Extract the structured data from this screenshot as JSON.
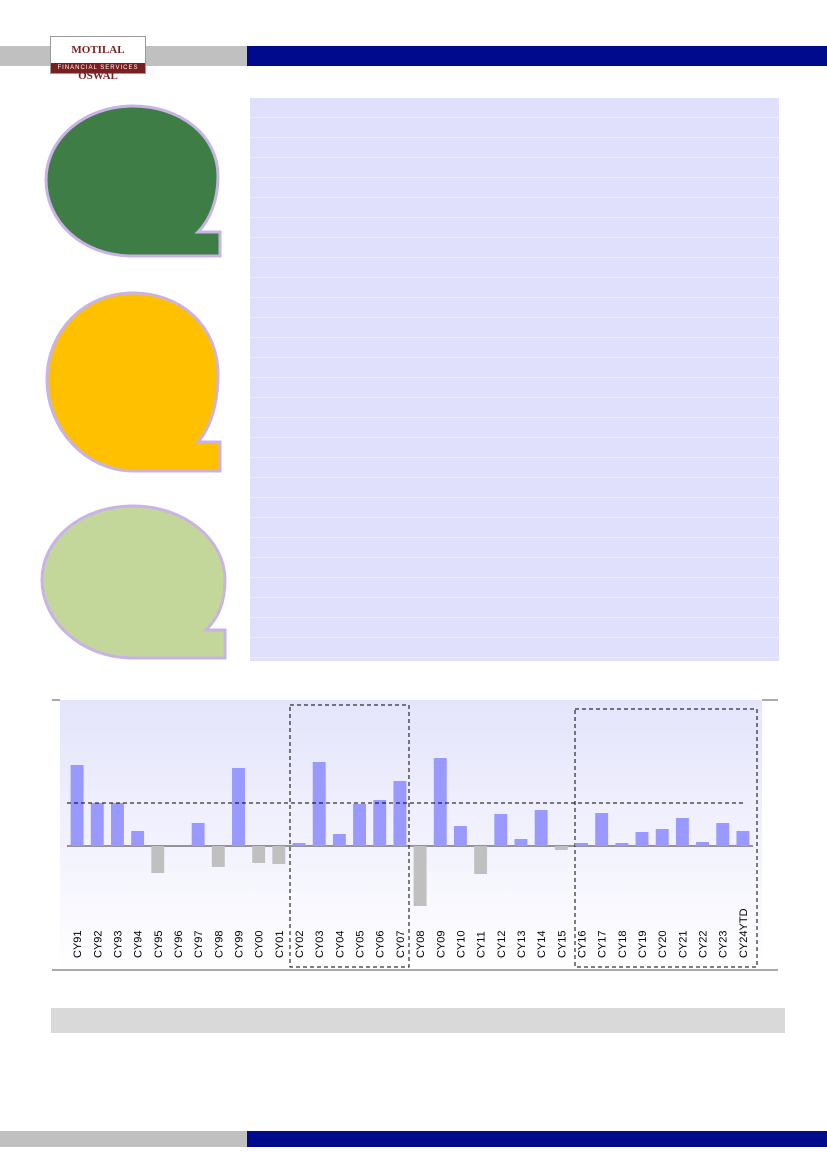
{
  "header": {
    "brand": "MOTILAL OSWAL",
    "tagline": "FINANCIAL SERVICES"
  },
  "chart_data": {
    "type": "bar",
    "categories": [
      "CY91",
      "CY92",
      "CY93",
      "CY94",
      "CY95",
      "CY96",
      "CY97",
      "CY98",
      "CY99",
      "CY00",
      "CY01",
      "CY02",
      "CY03",
      "CY04",
      "CY05",
      "CY06",
      "CY07",
      "CY08",
      "CY09",
      "CY10",
      "CY11",
      "CY12",
      "CY13",
      "CY14",
      "CY15",
      "CY16",
      "CY17",
      "CY18",
      "CY19",
      "CY20",
      "CY21",
      "CY22",
      "CY23",
      "CY24YTD"
    ],
    "values": [
      81,
      43,
      43,
      15,
      -27,
      0,
      23,
      -21,
      78,
      -17,
      -18,
      3,
      84,
      12,
      42,
      46,
      65,
      -60,
      88,
      20,
      -28,
      32,
      7,
      36,
      -4,
      3,
      33,
      3,
      14,
      17,
      28,
      4,
      23,
      15
    ],
    "average_line": 43,
    "ylim": [
      -124,
      146
    ],
    "positive_color": "#9999ff",
    "negative_color": "#c0c0c0"
  }
}
